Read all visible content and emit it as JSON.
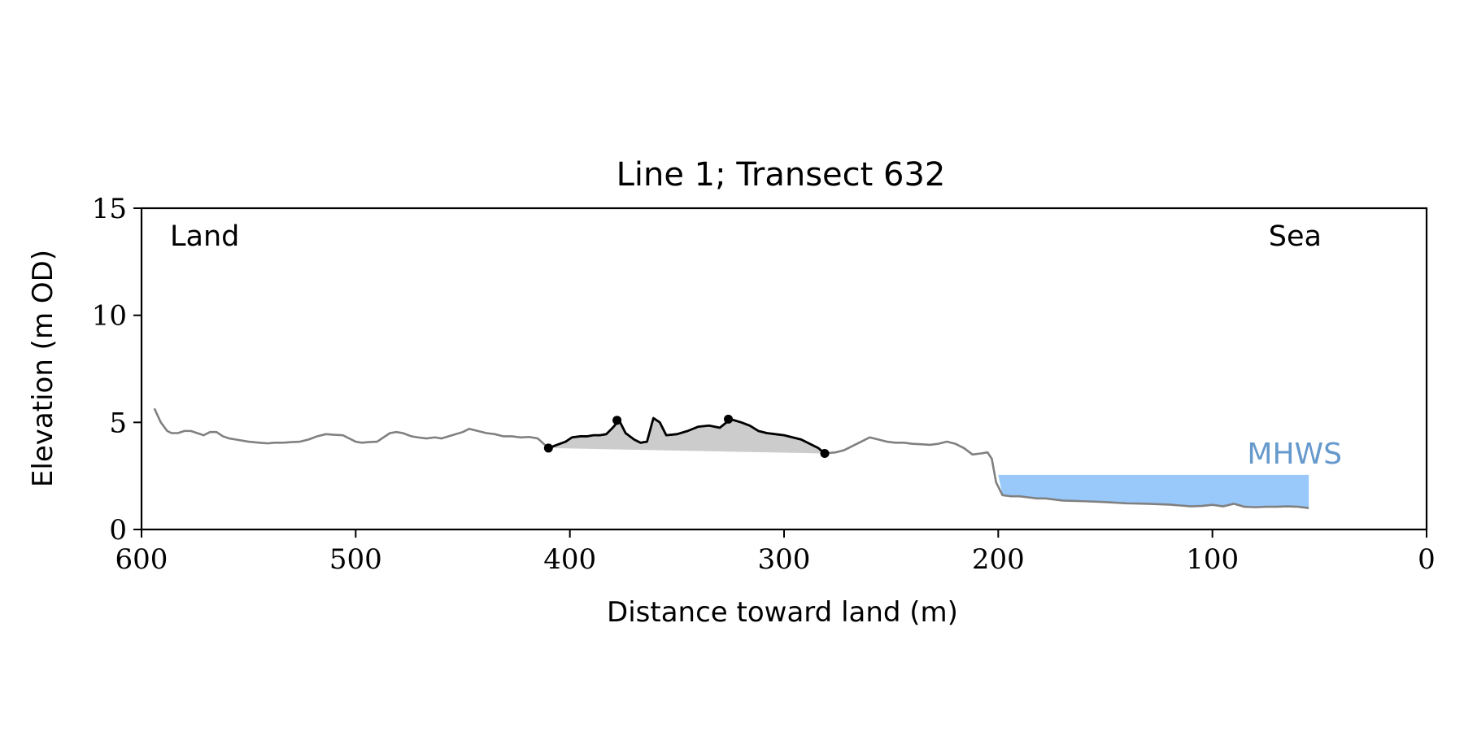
{
  "chart_data": {
    "type": "line",
    "title": "Line 1; Transect 632",
    "xlabel": "Distance toward land (m)",
    "ylabel": "Elevation (m OD)",
    "xlim": [
      600,
      0
    ],
    "ylim": [
      0,
      15
    ],
    "x_ticks": [
      600,
      500,
      400,
      300,
      200,
      100,
      0
    ],
    "y_ticks": [
      0,
      5,
      10,
      15
    ],
    "x_tick_labels": [
      "600",
      "500",
      "400",
      "300",
      "200",
      "100",
      "0"
    ],
    "y_tick_labels": [
      "0",
      "5",
      "10",
      "15"
    ],
    "grid": false,
    "annotations": {
      "left": "Land",
      "right": "Sea"
    },
    "colors": {
      "profile": "#808080",
      "dune": "#000000",
      "dune_fill": "#cccccc",
      "mhws_fill": "#99c9fb",
      "mhws_label": "#6699cc"
    },
    "profile": {
      "x": [
        594,
        591,
        588,
        586,
        583,
        580,
        577,
        574,
        571,
        568,
        565,
        562,
        559,
        556,
        550,
        545,
        541,
        538,
        534,
        530,
        526,
        522,
        518,
        514,
        510,
        506,
        500,
        497,
        494,
        490,
        487,
        484,
        481,
        478,
        474,
        471,
        467,
        463,
        460,
        455,
        450,
        447,
        443,
        439,
        435,
        431,
        427,
        423,
        419,
        415,
        410,
        406,
        402,
        399,
        395,
        392,
        389,
        386,
        383,
        380,
        377,
        374,
        370,
        367,
        364,
        361,
        358,
        355,
        350,
        345,
        340,
        335,
        330,
        325,
        320,
        316,
        312,
        308,
        304,
        300,
        296,
        292,
        288,
        284,
        281,
        276,
        272,
        268,
        264,
        260,
        256,
        252,
        248,
        244,
        240,
        236,
        232,
        228,
        224,
        220,
        216,
        212,
        208,
        205,
        203,
        201,
        198,
        194,
        190,
        186,
        182,
        178,
        170,
        160,
        150,
        140,
        130,
        120,
        115,
        110,
        105,
        100,
        95,
        90,
        85,
        80,
        75,
        70,
        65,
        60,
        55
      ],
      "y": [
        5.65,
        5.0,
        4.6,
        4.5,
        4.5,
        4.6,
        4.6,
        4.5,
        4.4,
        4.55,
        4.55,
        4.35,
        4.25,
        4.2,
        4.1,
        4.05,
        4.02,
        4.05,
        4.05,
        4.08,
        4.1,
        4.2,
        4.35,
        4.45,
        4.42,
        4.4,
        4.1,
        4.05,
        4.08,
        4.1,
        4.3,
        4.5,
        4.55,
        4.5,
        4.35,
        4.3,
        4.25,
        4.3,
        4.25,
        4.4,
        4.55,
        4.7,
        4.6,
        4.5,
        4.45,
        4.35,
        4.35,
        4.3,
        4.32,
        4.25,
        3.8,
        3.95,
        4.1,
        4.3,
        4.35,
        4.35,
        4.4,
        4.4,
        4.45,
        4.75,
        5.1,
        4.5,
        4.2,
        4.05,
        4.1,
        5.2,
        5.0,
        4.4,
        4.45,
        4.6,
        4.8,
        4.85,
        4.75,
        5.15,
        5.0,
        4.85,
        4.6,
        4.5,
        4.45,
        4.4,
        4.3,
        4.2,
        4.0,
        3.8,
        3.55,
        3.6,
        3.7,
        3.9,
        4.1,
        4.3,
        4.2,
        4.1,
        4.05,
        4.05,
        4.0,
        3.98,
        3.95,
        4.0,
        4.1,
        4.0,
        3.8,
        3.5,
        3.55,
        3.6,
        3.3,
        2.2,
        1.6,
        1.55,
        1.55,
        1.5,
        1.45,
        1.45,
        1.35,
        1.32,
        1.28,
        1.22,
        1.2,
        1.16,
        1.12,
        1.08,
        1.1,
        1.15,
        1.08,
        1.2,
        1.06,
        1.04,
        1.06,
        1.06,
        1.08,
        1.06,
        1.0
      ]
    },
    "dune": {
      "x_start": 410,
      "x_end": 281,
      "y_start": 3.8,
      "y_end": 3.55,
      "crest_points": [
        {
          "x": 378,
          "y": 5.1
        },
        {
          "x": 326,
          "y": 5.15
        }
      ]
    },
    "mhws": {
      "label": "MHWS",
      "level": 2.55,
      "x_from": 200,
      "x_to": 55
    }
  }
}
